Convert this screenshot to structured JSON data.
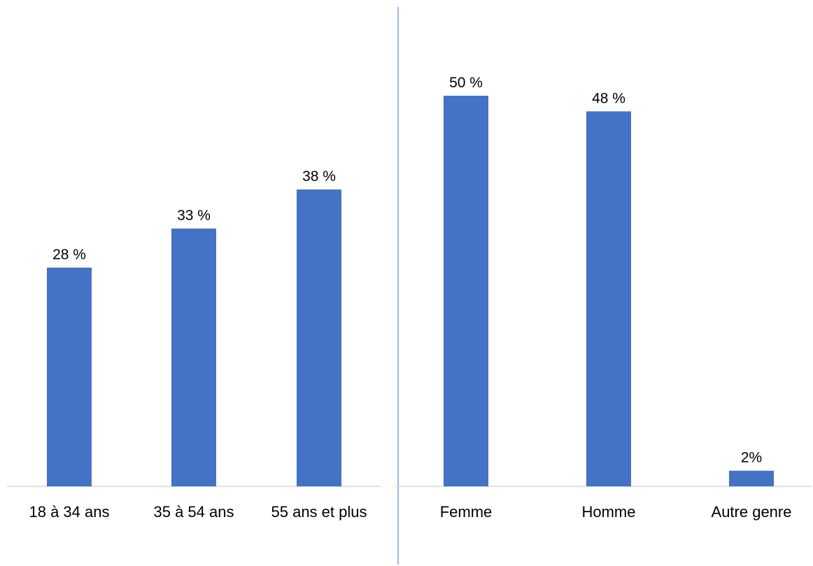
{
  "chart_data": [
    {
      "type": "bar",
      "categories": [
        "18 à 34 ans",
        "35 à 54 ans",
        "55 ans et plus"
      ],
      "values": [
        28,
        33,
        38
      ],
      "value_labels": [
        "28 %",
        "33 %",
        "38 %"
      ],
      "title": "",
      "xlabel": "",
      "ylabel": "",
      "ylim": [
        0,
        55
      ],
      "grid": false,
      "legend": "none",
      "bar_color": "#4472C4"
    },
    {
      "type": "bar",
      "categories": [
        "Femme",
        "Homme",
        "Autre genre"
      ],
      "values": [
        50,
        48,
        2
      ],
      "value_labels": [
        "50 %",
        "48 %",
        "2%"
      ],
      "title": "",
      "xlabel": "",
      "ylabel": "",
      "ylim": [
        0,
        55
      ],
      "grid": false,
      "legend": "none",
      "bar_color": "#4472C4"
    }
  ],
  "colors": {
    "bar": "#4472C4",
    "axis": "#D9D9D9",
    "divider": "#4472C4"
  }
}
